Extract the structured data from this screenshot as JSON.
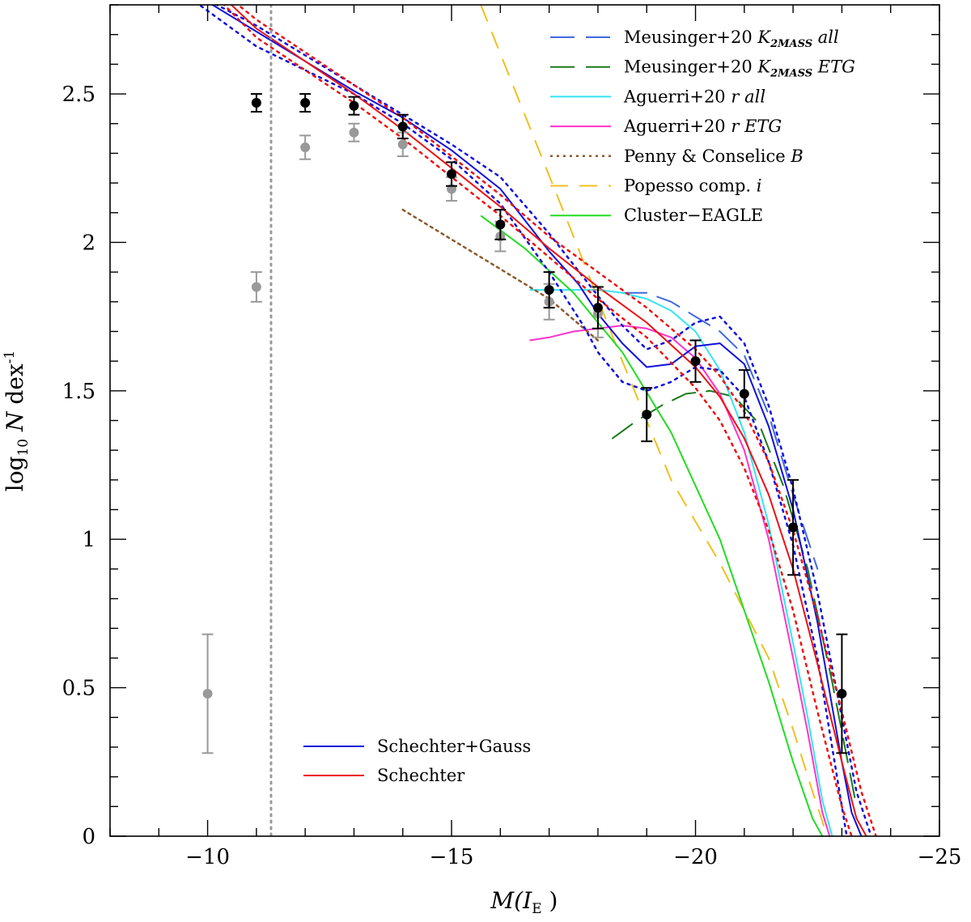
{
  "chart_data": {
    "type": "scatter",
    "title": "",
    "xlabel": "M(I_E )",
    "xlabel_parts": {
      "prefix": "M(I",
      "sub": "E",
      "suffix": " )"
    },
    "ylabel": "log10 N dex-1",
    "ylabel_parts": {
      "log": "log",
      "logsub": "10",
      "var": " N",
      "unit": " dex",
      "unitsup": "-1"
    },
    "xlim": [
      -8,
      -25
    ],
    "ylim": [
      0,
      2.8
    ],
    "x_ticks": [
      -10,
      -15,
      -20,
      -25
    ],
    "x_tick_labels": [
      "−10",
      "−15",
      "−20",
      "−25"
    ],
    "y_ticks": [
      0,
      0.5,
      1,
      1.5,
      2,
      2.5
    ],
    "y_tick_labels": [
      "0",
      "0.5",
      "1",
      "1.5",
      "2",
      "2.5"
    ],
    "vertical_line": {
      "x": -11.3,
      "color": "#999999",
      "style": "dotted"
    },
    "points_black": {
      "color": "#000000",
      "x": [
        -11,
        -12,
        -13,
        -14,
        -15,
        -16,
        -17,
        -18,
        -19,
        -20,
        -21,
        -22,
        -23
      ],
      "y": [
        2.47,
        2.47,
        2.46,
        2.39,
        2.23,
        2.06,
        1.84,
        1.78,
        1.42,
        1.6,
        1.49,
        1.04,
        0.48
      ],
      "err": [
        0.03,
        0.03,
        0.03,
        0.04,
        0.04,
        0.05,
        0.06,
        0.07,
        0.09,
        0.07,
        0.08,
        0.16,
        0.2
      ]
    },
    "points_gray": {
      "color": "#999999",
      "x": [
        -10,
        -11,
        -12,
        -13,
        -14,
        -15,
        -16,
        -17,
        -18
      ],
      "y": [
        0.48,
        1.85,
        2.32,
        2.37,
        2.33,
        2.18,
        2.02,
        1.8,
        1.76
      ],
      "err": [
        0.2,
        0.05,
        0.04,
        0.03,
        0.04,
        0.04,
        0.05,
        0.06,
        0.08
      ]
    },
    "legend_top": [
      {
        "label": "Meusinger+20 ",
        "italic": "K",
        "sub": "2MASS",
        "tail": " all",
        "color": "#4169e1",
        "dash": "30,14",
        "width": 2
      },
      {
        "label": "Meusinger+20 ",
        "italic": "K",
        "sub": "2MASS",
        "tail": " ETG",
        "color": "#1b7a1b",
        "dash": "30,14",
        "width": 2
      },
      {
        "label": "Aguerri+20 ",
        "italic": "r",
        "sub": "",
        "tail": " all",
        "color": "#33e5f0",
        "dash": "",
        "width": 2
      },
      {
        "label": "Aguerri+20 ",
        "italic": "r",
        "sub": "",
        "tail": " ETG",
        "color": "#ff33cc",
        "dash": "",
        "width": 2
      },
      {
        "label": "Penny & Conselice ",
        "italic": "B",
        "sub": "",
        "tail": "",
        "color": "#8b5a2b",
        "dash": "3,5",
        "width": 2.5
      },
      {
        "label": "Popesso comp. ",
        "italic": "i",
        "sub": "",
        "tail": "",
        "color": "#f0c020",
        "dash": "22,14",
        "width": 2
      },
      {
        "label": "Cluster−EAGLE",
        "italic": "",
        "sub": "",
        "tail": "",
        "color": "#22dd22",
        "dash": "",
        "width": 2
      }
    ],
    "legend_bottom": [
      {
        "label": "Schechter+Gauss",
        "color": "#1010dd",
        "dash": "",
        "width": 2
      },
      {
        "label": "Schechter",
        "color": "#ee1111",
        "dash": "",
        "width": 2
      }
    ],
    "series": [
      {
        "name": "Meusinger+20 K2MASS all",
        "color": "#4169e1",
        "dash": "30,14",
        "width": 2,
        "x": [
          -18.5,
          -19,
          -19.5,
          -20,
          -20.5,
          -21,
          -21.5,
          -22,
          -22.5
        ],
        "y": [
          1.83,
          1.83,
          1.8,
          1.75,
          1.7,
          1.62,
          1.42,
          1.15,
          0.9
        ]
      },
      {
        "name": "Meusinger+20 K2MASS ETG",
        "color": "#1b7a1b",
        "dash": "30,14",
        "width": 2,
        "x": [
          -18.3,
          -18.8,
          -19.3,
          -19.8,
          -20.3,
          -20.8,
          -21.3,
          -21.8,
          -22.3,
          -22.8,
          -23.3
        ],
        "y": [
          1.34,
          1.4,
          1.45,
          1.49,
          1.5,
          1.48,
          1.39,
          1.18,
          0.9,
          0.52,
          0.1
        ]
      },
      {
        "name": "Aguerri+20 r all",
        "color": "#33e5f0",
        "dash": "",
        "width": 2,
        "x": [
          -16.6,
          -17,
          -17.5,
          -18,
          -18.5,
          -19,
          -19.5,
          -20,
          -20.5,
          -21,
          -21.5,
          -22,
          -22.3,
          -22.6,
          -22.8
        ],
        "y": [
          1.84,
          1.84,
          1.84,
          1.84,
          1.83,
          1.81,
          1.77,
          1.7,
          1.57,
          1.36,
          1.05,
          0.65,
          0.4,
          0.12,
          0.0
        ]
      },
      {
        "name": "Aguerri+20 r ETG",
        "color": "#ff33cc",
        "dash": "",
        "width": 2,
        "x": [
          -16.6,
          -17,
          -17.5,
          -18,
          -18.5,
          -19,
          -19.5,
          -20,
          -20.5,
          -21,
          -21.5,
          -22,
          -22.3,
          -22.6,
          -22.75
        ],
        "y": [
          1.67,
          1.68,
          1.7,
          1.71,
          1.72,
          1.71,
          1.68,
          1.61,
          1.49,
          1.3,
          1.0,
          0.6,
          0.35,
          0.08,
          0.0
        ]
      },
      {
        "name": "Penny & Conselice B",
        "color": "#8b5a2b",
        "dash": "3,5",
        "width": 2.5,
        "x": [
          -14,
          -15,
          -16,
          -17,
          -18
        ],
        "y": [
          2.11,
          2.01,
          1.91,
          1.81,
          1.67
        ]
      },
      {
        "name": "Popesso comp. i",
        "color": "#f0c020",
        "dash": "22,14",
        "width": 2,
        "x": [
          -15.6,
          -16.5,
          -17.5,
          -18.5,
          -19.5,
          -20.5,
          -21.5,
          -22.0,
          -22.4,
          -22.7
        ],
        "y": [
          2.8,
          2.43,
          2.02,
          1.6,
          1.2,
          0.92,
          0.6,
          0.36,
          0.15,
          0.0
        ]
      },
      {
        "name": "Cluster-EAGLE",
        "color": "#22dd22",
        "dash": "",
        "width": 2,
        "x": [
          -15.6,
          -16.5,
          -17.5,
          -18.5,
          -19.5,
          -20.5,
          -21.5,
          -22.0,
          -22.4,
          -22.6
        ],
        "y": [
          2.09,
          1.98,
          1.83,
          1.63,
          1.36,
          1.0,
          0.52,
          0.25,
          0.06,
          0.0
        ]
      },
      {
        "name": "Schechter+Gauss",
        "color": "#1010dd",
        "dash": "",
        "width": 2,
        "x": [
          -9.5,
          -11,
          -12,
          -13,
          -14,
          -15,
          -16,
          -17,
          -17.6,
          -18,
          -18.5,
          -19,
          -19.5,
          -20,
          -20.5,
          -21,
          -21.5,
          -22,
          -22.5,
          -23,
          -23.2,
          -23.4
        ],
        "y": [
          2.86,
          2.71,
          2.61,
          2.51,
          2.42,
          2.31,
          2.18,
          1.97,
          1.86,
          1.76,
          1.66,
          1.58,
          1.59,
          1.65,
          1.66,
          1.59,
          1.38,
          1.1,
          0.72,
          0.25,
          0.08,
          0.0
        ]
      },
      {
        "name": "Schechter+Gauss upper",
        "color": "#1010dd",
        "dash": "3,6",
        "width": 2.5,
        "x": [
          -9.5,
          -11,
          -12,
          -13,
          -14,
          -15,
          -16,
          -17,
          -18,
          -18.5,
          -19,
          -19.5,
          -20,
          -20.5,
          -21,
          -21.5,
          -22,
          -22.5,
          -23,
          -23.3,
          -23.6
        ],
        "y": [
          2.86,
          2.73,
          2.63,
          2.53,
          2.43,
          2.33,
          2.22,
          2.03,
          1.82,
          1.72,
          1.64,
          1.67,
          1.73,
          1.75,
          1.66,
          1.45,
          1.17,
          0.82,
          0.4,
          0.15,
          0.0
        ]
      },
      {
        "name": "Schechter+Gauss lower",
        "color": "#1010dd",
        "dash": "3,6",
        "width": 2.5,
        "x": [
          -9.5,
          -11,
          -12,
          -13,
          -14,
          -15,
          -16,
          -17,
          -17.7,
          -18,
          -18.5,
          -19,
          -19.5,
          -20,
          -20.5,
          -21,
          -21.5,
          -22,
          -22.5,
          -22.9,
          -23.1
        ],
        "y": [
          2.84,
          2.66,
          2.58,
          2.5,
          2.4,
          2.28,
          2.13,
          1.9,
          1.72,
          1.63,
          1.53,
          1.5,
          1.53,
          1.58,
          1.57,
          1.48,
          1.26,
          0.98,
          0.6,
          0.2,
          0.0
        ]
      },
      {
        "name": "Schechter",
        "color": "#ee1111",
        "dash": "",
        "width": 2,
        "x": [
          -10.1,
          -11,
          -12,
          -13,
          -14,
          -15,
          -16,
          -17,
          -18,
          -19,
          -20,
          -20.5,
          -21,
          -21.5,
          -22,
          -22.5,
          -23,
          -23.3,
          -23.5
        ],
        "y": [
          2.86,
          2.72,
          2.61,
          2.5,
          2.38,
          2.25,
          2.12,
          1.98,
          1.85,
          1.73,
          1.58,
          1.48,
          1.34,
          1.15,
          0.9,
          0.58,
          0.25,
          0.06,
          0.0
        ]
      },
      {
        "name": "Schechter upper",
        "color": "#ee1111",
        "dash": "3,6",
        "width": 2.5,
        "x": [
          -10.1,
          -11,
          -12,
          -13,
          -14,
          -15,
          -16,
          -17,
          -18,
          -19,
          -20,
          -20.5,
          -21,
          -21.5,
          -22,
          -22.5,
          -23,
          -23.4,
          -23.7
        ],
        "y": [
          2.87,
          2.75,
          2.64,
          2.53,
          2.42,
          2.29,
          2.16,
          2.02,
          1.9,
          1.78,
          1.64,
          1.55,
          1.43,
          1.26,
          1.03,
          0.74,
          0.42,
          0.15,
          0.0
        ]
      },
      {
        "name": "Schechter lower",
        "color": "#ee1111",
        "dash": "3,6",
        "width": 2.5,
        "x": [
          -10.1,
          -11,
          -12,
          -13,
          -14,
          -15,
          -16,
          -17,
          -18,
          -19,
          -20,
          -20.5,
          -21,
          -21.5,
          -22,
          -22.5,
          -23,
          -23.2
        ],
        "y": [
          2.84,
          2.69,
          2.58,
          2.47,
          2.35,
          2.22,
          2.09,
          1.95,
          1.81,
          1.68,
          1.51,
          1.4,
          1.24,
          1.03,
          0.76,
          0.42,
          0.1,
          0.0
        ]
      }
    ]
  }
}
